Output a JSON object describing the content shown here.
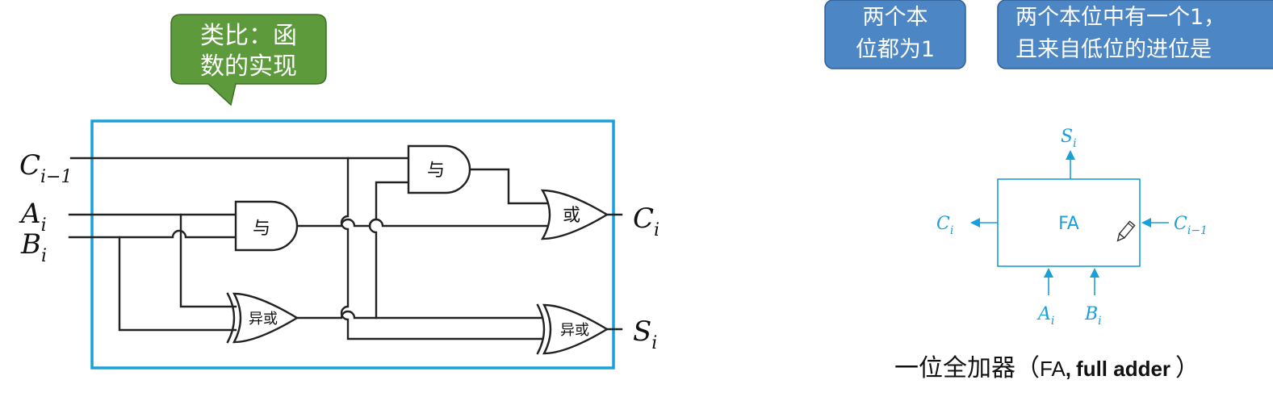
{
  "callout": {
    "line1": "类比：函",
    "line2": "数的实现"
  },
  "bubbles": [
    {
      "line1": "两个本",
      "line2": "位都为1"
    },
    {
      "line1": "两个本位中有一个1，",
      "line2": "且来自低位的进位是"
    }
  ],
  "circuit": {
    "inputs": {
      "c": {
        "main": "C",
        "sub": "i−1"
      },
      "a": {
        "main": "A",
        "sub": "i"
      },
      "b": {
        "main": "B",
        "sub": "i"
      }
    },
    "outputs": {
      "c": {
        "main": "C",
        "sub": "i"
      },
      "s": {
        "main": "S",
        "sub": "i"
      }
    },
    "gates": {
      "and_top": "与",
      "and_mid": "与",
      "or": "或",
      "xor_left": "异或",
      "xor_right": "异或"
    }
  },
  "fa_block": {
    "label": "FA",
    "s_out": {
      "main": "S",
      "sub": "i"
    },
    "c_out": {
      "main": "C",
      "sub": "i"
    },
    "c_in": {
      "main": "C",
      "sub": "i−1"
    },
    "a_in": {
      "main": "A",
      "sub": "i"
    },
    "b_in": {
      "main": "B",
      "sub": "i"
    },
    "pencil_icon": "pencil-icon"
  },
  "caption": {
    "prefix": "一位全加器（",
    "fa": "FA",
    "comma": ",",
    "full": "full adder",
    "suffix": "）"
  },
  "colors": {
    "callout_green": "#5c9a3c",
    "bubble_blue": "#4d86c5",
    "frame_blue": "#1aa0d8",
    "fa_blue": "#1aa0d8"
  }
}
